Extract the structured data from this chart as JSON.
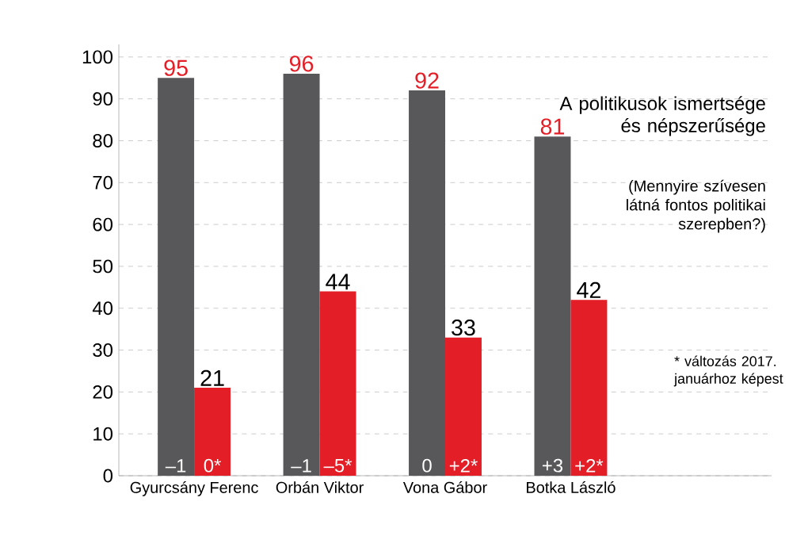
{
  "chart_data": {
    "type": "bar",
    "title": "A politikusok ismertsége és népszerűsége",
    "subtitle": "(Mennyire szívesen látná fontos politikai szerepben?)",
    "categories": [
      "Gyurcsány Ferenc",
      "Orbán Viktor",
      "Vona Gábor",
      "Botka László"
    ],
    "series": [
      {
        "color": "#58585a",
        "values": [
          95,
          96,
          92,
          81
        ]
      },
      {
        "color": "#e41e26",
        "values": [
          21,
          44,
          33,
          42
        ]
      }
    ],
    "ylim": [
      0,
      100
    ],
    "yticks": [
      0,
      10,
      20,
      30,
      40,
      50,
      60,
      70,
      80,
      90,
      100
    ],
    "grid": "y",
    "data_labels": true,
    "annotations": [
      {
        "text": "–1",
        "x": "Gyurcsány Ferenc",
        "y": 0
      },
      {
        "text": "0*",
        "x": "Gyurcsány Ferenc",
        "y": 0
      },
      {
        "text": "–1",
        "x": "Orbán Viktor",
        "y": 0
      },
      {
        "text": "–5*",
        "x": "Orbán Viktor",
        "y": 0
      },
      {
        "text": "0",
        "x": "Vona Gábor",
        "y": 0
      },
      {
        "text": "+2*",
        "x": "Vona Gábor",
        "y": 0
      },
      {
        "text": "+3",
        "x": "Botka László",
        "y": 0
      },
      {
        "text": "+2*",
        "x": "Botka László",
        "y": 0
      },
      "* változás 2017. januárhoz képest"
    ]
  }
}
